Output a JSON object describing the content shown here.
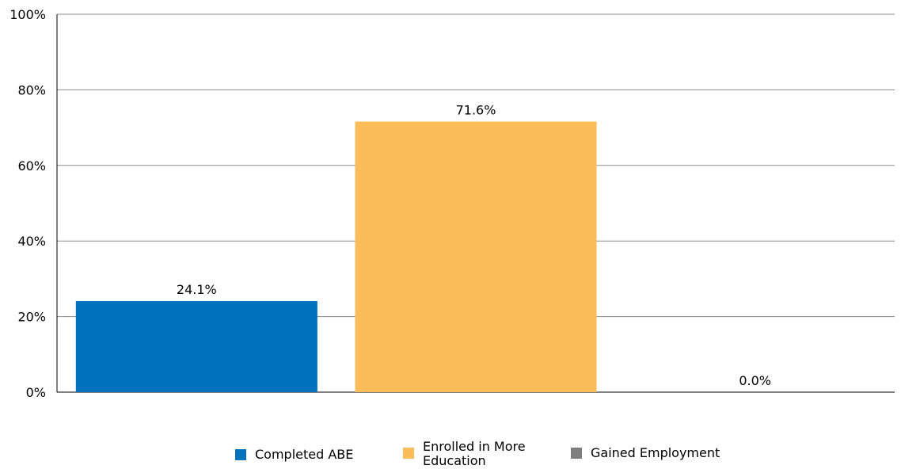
{
  "chart_data": {
    "type": "bar",
    "categories": [
      "Completed ABE",
      "Enrolled in More Education",
      "Gained Employment"
    ],
    "values": [
      24.1,
      71.6,
      0.0
    ],
    "data_labels": [
      "24.1%",
      "71.6%",
      "0.0%"
    ],
    "colors": [
      "#0071bc",
      "#fbbd59",
      "#7f7f7f"
    ],
    "title": "",
    "xlabel": "",
    "ylabel": "",
    "ylim": [
      0,
      100
    ],
    "y_ticks": [
      0,
      20,
      40,
      60,
      80,
      100
    ],
    "y_tick_labels": [
      "0%",
      "20%",
      "40%",
      "60%",
      "80%",
      "100%"
    ],
    "grid": true,
    "legend": {
      "position": "bottom",
      "entries": [
        "Completed ABE",
        "Enrolled in More Education",
        "Gained Employment"
      ]
    }
  }
}
